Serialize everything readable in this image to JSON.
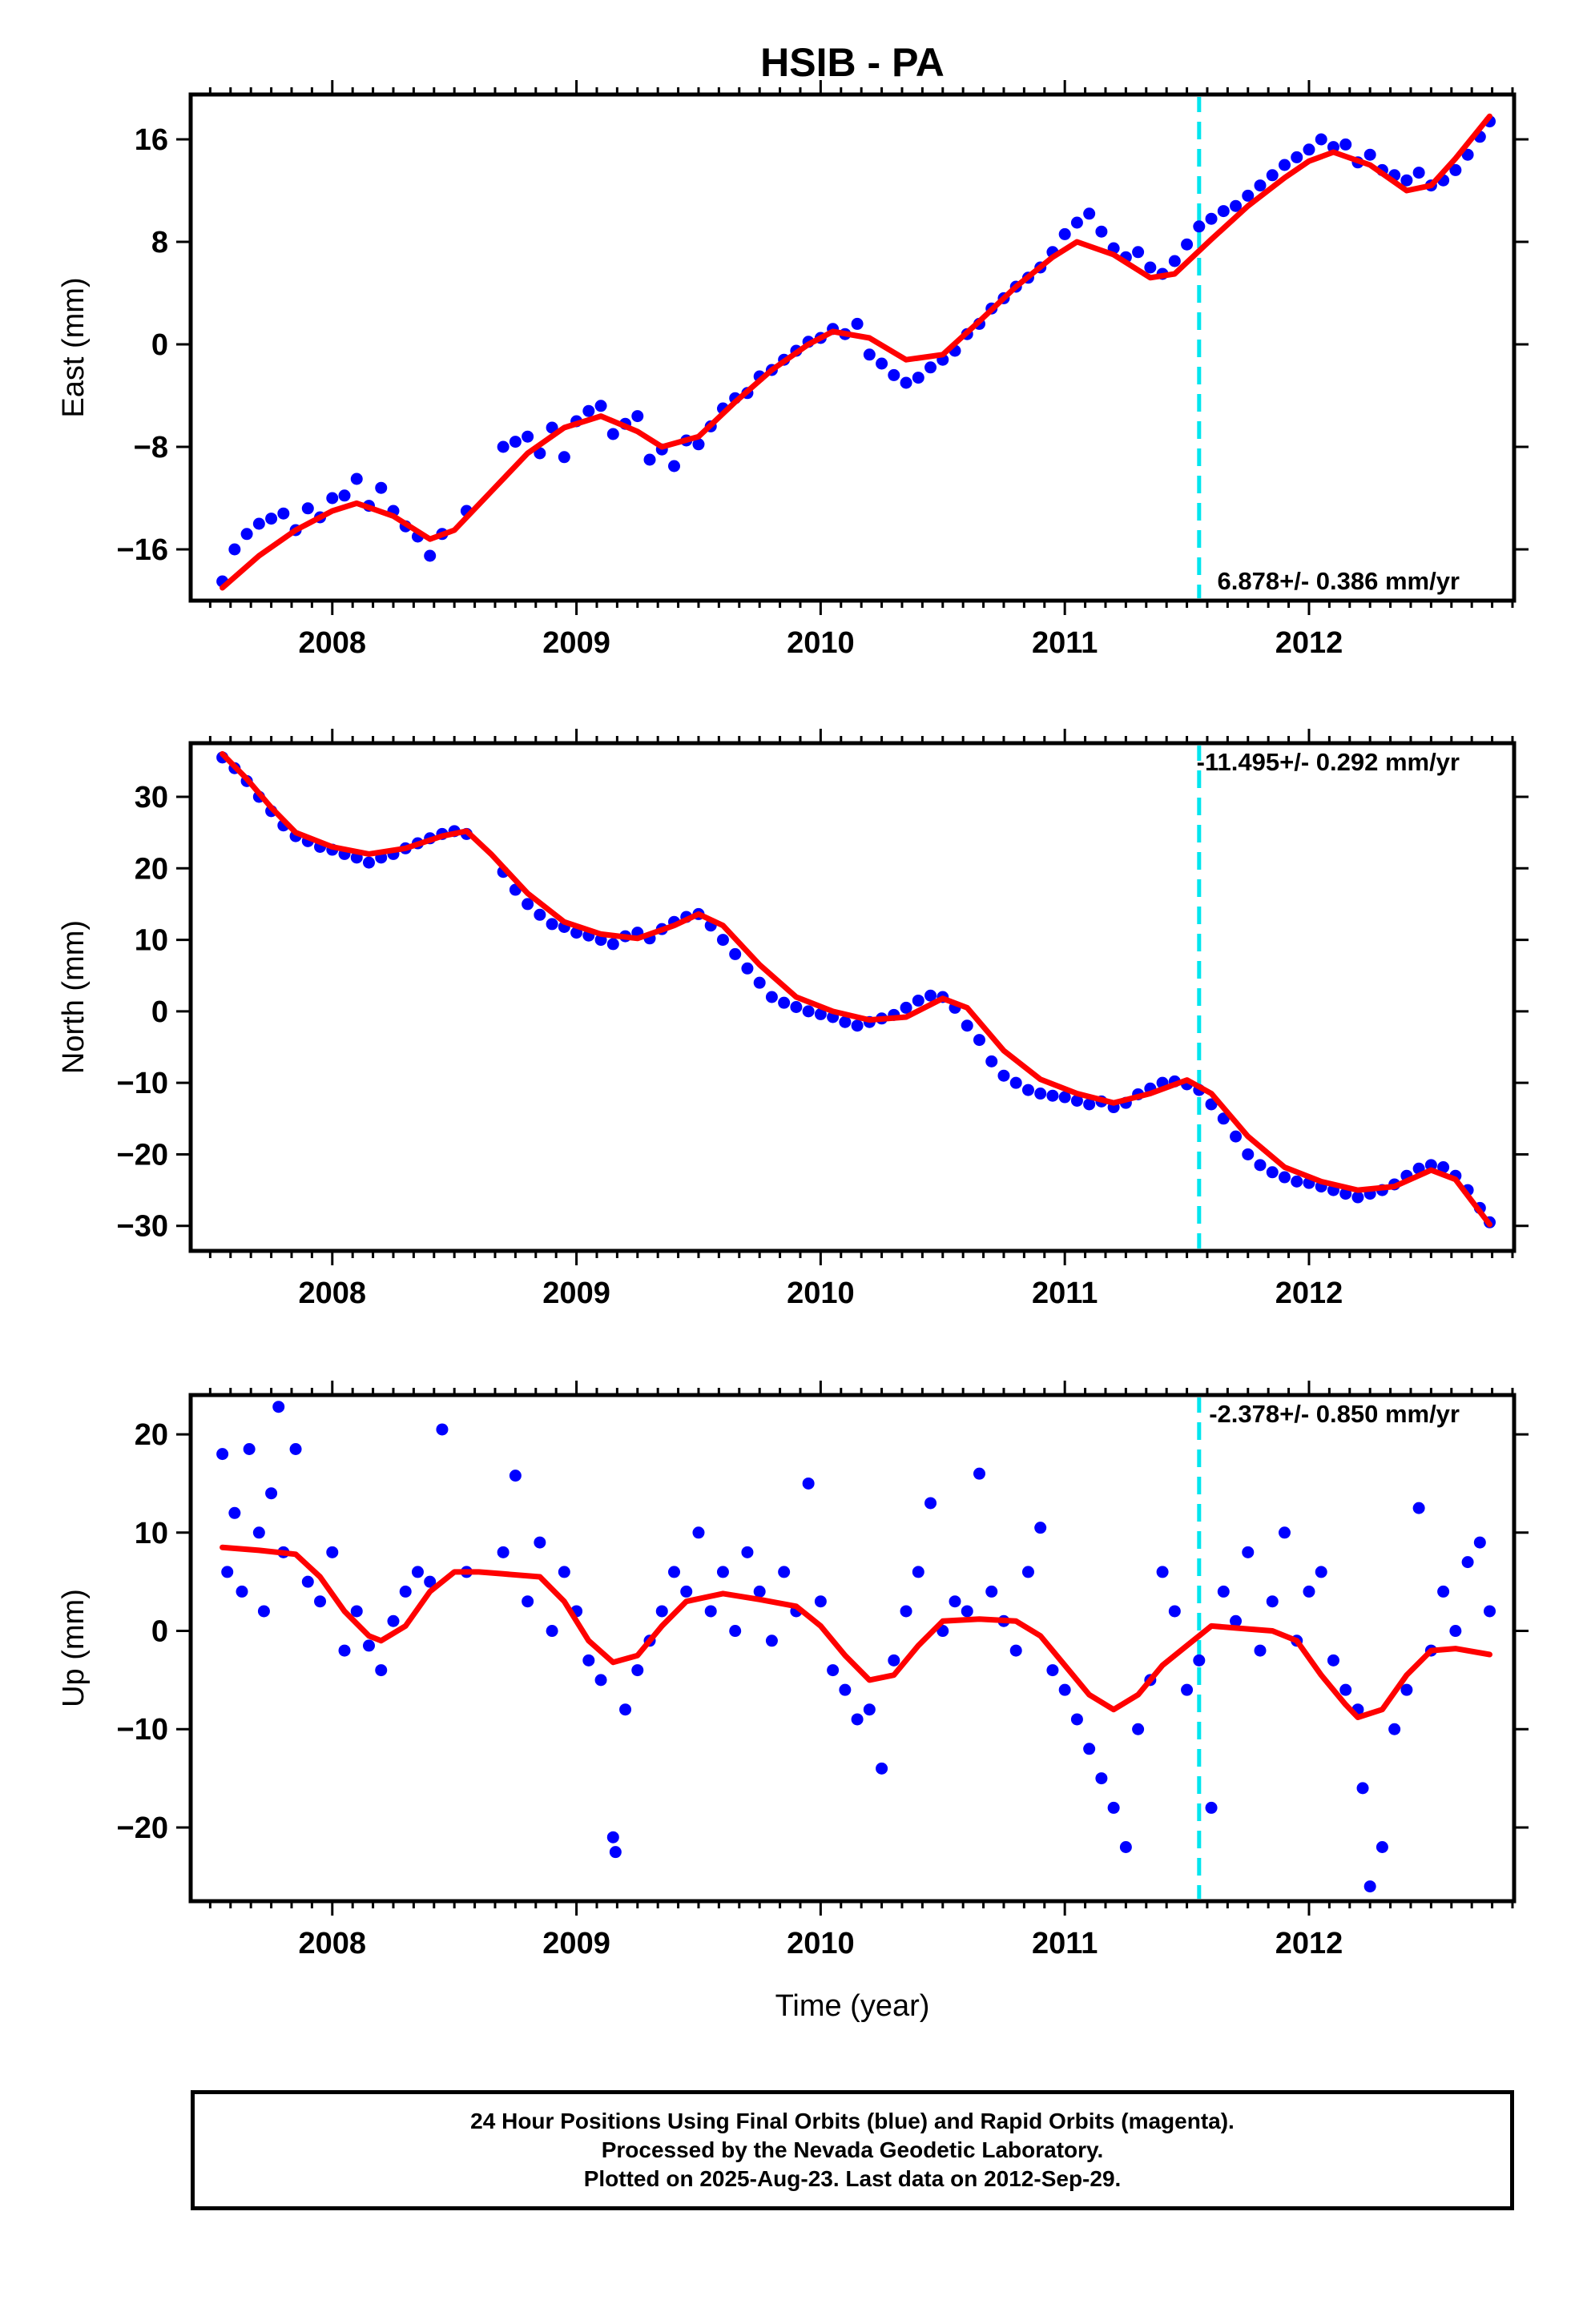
{
  "chart_data": [
    {
      "type": "scatter",
      "title": "HSIB - PA",
      "ylabel": "East (mm)",
      "xlabel": "",
      "xlim": [
        2007.42,
        2012.84
      ],
      "ylim": [
        -20.0,
        19.5
      ],
      "yticks": [
        -16,
        -8,
        0,
        8,
        16
      ],
      "xticks": [
        2008,
        2009,
        2010,
        2011,
        2012
      ],
      "annotation": "6.878+/- 0.386 mm/yr",
      "annotation_position": "bottom-right",
      "break_line_x": 2011.55,
      "series": [
        {
          "kind": "points",
          "color": "#0000ff",
          "x": [
            2007.55,
            2007.6,
            2007.65,
            2007.7,
            2007.75,
            2007.8,
            2007.85,
            2007.9,
            2007.95,
            2008.0,
            2008.05,
            2008.1,
            2008.15,
            2008.2,
            2008.25,
            2008.3,
            2008.35,
            2008.4,
            2008.45,
            2008.55,
            2008.7,
            2008.75,
            2008.8,
            2008.85,
            2008.9,
            2008.95,
            2009.0,
            2009.05,
            2009.1,
            2009.15,
            2009.2,
            2009.25,
            2009.3,
            2009.35,
            2009.4,
            2009.45,
            2009.5,
            2009.55,
            2009.6,
            2009.65,
            2009.7,
            2009.75,
            2009.8,
            2009.85,
            2009.9,
            2009.95,
            2010.0,
            2010.05,
            2010.1,
            2010.15,
            2010.2,
            2010.25,
            2010.3,
            2010.35,
            2010.4,
            2010.45,
            2010.5,
            2010.55,
            2010.6,
            2010.65,
            2010.7,
            2010.75,
            2010.8,
            2010.85,
            2010.9,
            2010.95,
            2011.0,
            2011.05,
            2011.1,
            2011.15,
            2011.2,
            2011.25,
            2011.3,
            2011.35,
            2011.4,
            2011.45,
            2011.5,
            2011.55,
            2011.6,
            2011.65,
            2011.7,
            2011.75,
            2011.8,
            2011.85,
            2011.9,
            2011.95,
            2012.0,
            2012.05,
            2012.1,
            2012.15,
            2012.2,
            2012.25,
            2012.3,
            2012.35,
            2012.4,
            2012.45,
            2012.5,
            2012.55,
            2012.6,
            2012.65,
            2012.7,
            2012.74
          ],
          "y": [
            -18.5,
            -16.0,
            -14.8,
            -14.0,
            -13.6,
            -13.2,
            -14.5,
            -12.8,
            -13.5,
            -12.0,
            -11.8,
            -10.5,
            -12.6,
            -11.2,
            -13.0,
            -14.2,
            -15.0,
            -16.5,
            -14.8,
            -13.0,
            -8.0,
            -7.6,
            -7.2,
            -8.5,
            -6.5,
            -8.8,
            -6.0,
            -5.2,
            -4.8,
            -7.0,
            -6.2,
            -5.6,
            -9.0,
            -8.2,
            -9.5,
            -7.5,
            -7.8,
            -6.4,
            -5.0,
            -4.2,
            -3.8,
            -2.5,
            -2.0,
            -1.2,
            -0.5,
            0.2,
            0.5,
            1.2,
            0.8,
            1.6,
            -0.8,
            -1.5,
            -2.4,
            -3.0,
            -2.6,
            -1.8,
            -1.2,
            -0.5,
            0.8,
            1.6,
            2.8,
            3.6,
            4.5,
            5.2,
            6.0,
            7.2,
            8.6,
            9.5,
            10.2,
            8.8,
            7.5,
            6.8,
            7.2,
            6.0,
            5.5,
            6.5,
            7.8,
            9.2,
            9.8,
            10.4,
            10.8,
            11.6,
            12.4,
            13.2,
            14.0,
            14.6,
            15.2,
            16.0,
            15.4,
            15.6,
            14.2,
            14.8,
            13.6,
            13.2,
            12.8,
            13.4,
            12.4,
            12.8,
            13.6,
            14.8,
            16.2,
            17.4
          ]
        },
        {
          "kind": "line",
          "color": "#ff0000",
          "x": [
            2007.55,
            2007.7,
            2007.85,
            2008.0,
            2008.1,
            2008.25,
            2008.4,
            2008.5,
            2008.65,
            2008.8,
            2008.95,
            2009.1,
            2009.25,
            2009.35,
            2009.5,
            2009.65,
            2009.8,
            2009.95,
            2010.05,
            2010.2,
            2010.35,
            2010.5,
            2010.65,
            2010.8,
            2010.95,
            2011.05,
            2011.2,
            2011.35,
            2011.45,
            2011.6,
            2011.75,
            2011.9,
            2012.0,
            2012.1,
            2012.25,
            2012.4,
            2012.5,
            2012.6,
            2012.74
          ],
          "y": [
            -19.0,
            -16.5,
            -14.5,
            -13.0,
            -12.4,
            -13.4,
            -15.2,
            -14.5,
            -11.5,
            -8.5,
            -6.5,
            -5.6,
            -6.8,
            -8.0,
            -7.2,
            -4.5,
            -2.0,
            0.0,
            1.0,
            0.5,
            -1.2,
            -0.8,
            1.8,
            4.5,
            6.8,
            8.0,
            7.0,
            5.2,
            5.5,
            8.2,
            10.8,
            13.0,
            14.3,
            15.0,
            14.0,
            12.0,
            12.4,
            14.5,
            17.8
          ]
        }
      ]
    },
    {
      "type": "scatter",
      "title": "",
      "ylabel": "North (mm)",
      "xlabel": "",
      "xlim": [
        2007.42,
        2012.84
      ],
      "ylim": [
        -33.5,
        37.5
      ],
      "yticks": [
        -30,
        -20,
        -10,
        0,
        10,
        20,
        30
      ],
      "xticks": [
        2008,
        2009,
        2010,
        2011,
        2012
      ],
      "annotation": "-11.495+/- 0.292 mm/yr",
      "annotation_position": "top-right",
      "break_line_x": 2011.55,
      "series": [
        {
          "kind": "points",
          "color": "#0000ff",
          "x": [
            2007.55,
            2007.6,
            2007.65,
            2007.7,
            2007.75,
            2007.8,
            2007.85,
            2007.9,
            2007.95,
            2008.0,
            2008.05,
            2008.1,
            2008.15,
            2008.2,
            2008.25,
            2008.3,
            2008.35,
            2008.4,
            2008.45,
            2008.5,
            2008.55,
            2008.7,
            2008.75,
            2008.8,
            2008.85,
            2008.9,
            2008.95,
            2009.0,
            2009.05,
            2009.1,
            2009.15,
            2009.2,
            2009.25,
            2009.3,
            2009.35,
            2009.4,
            2009.45,
            2009.5,
            2009.55,
            2009.6,
            2009.65,
            2009.7,
            2009.75,
            2009.8,
            2009.85,
            2009.9,
            2009.95,
            2010.0,
            2010.05,
            2010.1,
            2010.15,
            2010.2,
            2010.25,
            2010.3,
            2010.35,
            2010.4,
            2010.45,
            2010.5,
            2010.55,
            2010.6,
            2010.65,
            2010.7,
            2010.75,
            2010.8,
            2010.85,
            2010.9,
            2010.95,
            2011.0,
            2011.05,
            2011.1,
            2011.15,
            2011.2,
            2011.25,
            2011.3,
            2011.35,
            2011.4,
            2011.45,
            2011.5,
            2011.55,
            2011.6,
            2011.65,
            2011.7,
            2011.75,
            2011.8,
            2011.85,
            2011.9,
            2011.95,
            2012.0,
            2012.05,
            2012.1,
            2012.15,
            2012.2,
            2012.25,
            2012.3,
            2012.35,
            2012.4,
            2012.45,
            2012.5,
            2012.55,
            2012.6,
            2012.65,
            2012.7,
            2012.74
          ],
          "y": [
            35.5,
            34.0,
            32.2,
            30.0,
            28.0,
            26.0,
            24.5,
            23.8,
            23.0,
            22.6,
            22.0,
            21.5,
            20.8,
            21.5,
            22.0,
            22.8,
            23.5,
            24.2,
            24.8,
            25.2,
            24.8,
            19.5,
            17.0,
            15.0,
            13.5,
            12.2,
            11.8,
            11.0,
            10.6,
            10.0,
            9.4,
            10.5,
            11.0,
            10.2,
            11.5,
            12.5,
            13.2,
            13.6,
            12.0,
            10.0,
            8.0,
            6.0,
            4.0,
            2.0,
            1.2,
            0.6,
            0.0,
            -0.4,
            -0.8,
            -1.5,
            -2.0,
            -1.5,
            -1.0,
            -0.5,
            0.5,
            1.5,
            2.2,
            2.0,
            0.5,
            -2.0,
            -4.0,
            -7.0,
            -9.0,
            -10.0,
            -11.0,
            -11.5,
            -11.8,
            -12.0,
            -12.5,
            -13.0,
            -12.6,
            -13.4,
            -12.8,
            -11.6,
            -10.8,
            -10.0,
            -9.8,
            -10.2,
            -11.0,
            -13.0,
            -15.0,
            -17.5,
            -20.0,
            -21.5,
            -22.5,
            -23.2,
            -23.8,
            -24.0,
            -24.5,
            -25.0,
            -25.5,
            -26.0,
            -25.5,
            -25.0,
            -24.2,
            -23.0,
            -22.0,
            -21.5,
            -21.8,
            -23.0,
            -25.0,
            -27.5,
            -29.5
          ]
        },
        {
          "kind": "line",
          "color": "#ff0000",
          "x": [
            2007.55,
            2007.65,
            2007.75,
            2007.85,
            2008.0,
            2008.15,
            2008.3,
            2008.45,
            2008.55,
            2008.65,
            2008.8,
            2008.95,
            2009.1,
            2009.25,
            2009.4,
            2009.5,
            2009.6,
            2009.75,
            2009.9,
            2010.05,
            2010.2,
            2010.35,
            2010.5,
            2010.6,
            2010.75,
            2010.9,
            2011.05,
            2011.2,
            2011.35,
            2011.5,
            2011.6,
            2011.75,
            2011.9,
            2012.05,
            2012.2,
            2012.35,
            2012.5,
            2012.6,
            2012.74
          ],
          "y": [
            36.0,
            32.5,
            28.5,
            25.0,
            23.0,
            22.0,
            22.8,
            24.5,
            25.2,
            22.0,
            16.5,
            12.5,
            10.8,
            10.2,
            12.0,
            13.6,
            12.0,
            6.5,
            2.0,
            0.0,
            -1.2,
            -0.8,
            1.8,
            0.5,
            -5.5,
            -9.5,
            -11.5,
            -12.8,
            -11.5,
            -9.6,
            -11.5,
            -17.5,
            -21.8,
            -23.8,
            -25.0,
            -24.5,
            -22.2,
            -23.5,
            -29.8
          ]
        }
      ]
    },
    {
      "type": "scatter",
      "title": "",
      "ylabel": "Up (mm)",
      "xlabel": "Time (year)",
      "xlim": [
        2007.42,
        2012.84
      ],
      "ylim": [
        -27.5,
        24.0
      ],
      "yticks": [
        -20,
        -10,
        0,
        10,
        20
      ],
      "xticks": [
        2008,
        2009,
        2010,
        2011,
        2012
      ],
      "annotation": "-2.378+/- 0.850 mm/yr",
      "annotation_position": "top-right",
      "break_line_x": 2011.55,
      "series": [
        {
          "kind": "points",
          "color": "#0000ff",
          "x": [
            2007.55,
            2007.57,
            2007.6,
            2007.63,
            2007.66,
            2007.7,
            2007.72,
            2007.75,
            2007.78,
            2007.8,
            2007.85,
            2007.9,
            2007.95,
            2008.0,
            2008.05,
            2008.1,
            2008.15,
            2008.2,
            2008.25,
            2008.3,
            2008.35,
            2008.4,
            2008.45,
            2008.55,
            2008.7,
            2008.75,
            2008.8,
            2008.85,
            2008.9,
            2008.95,
            2009.0,
            2009.05,
            2009.1,
            2009.15,
            2009.16,
            2009.2,
            2009.25,
            2009.3,
            2009.35,
            2009.4,
            2009.45,
            2009.5,
            2009.55,
            2009.6,
            2009.65,
            2009.7,
            2009.75,
            2009.8,
            2009.85,
            2009.9,
            2009.95,
            2010.0,
            2010.05,
            2010.1,
            2010.15,
            2010.2,
            2010.25,
            2010.3,
            2010.35,
            2010.4,
            2010.45,
            2010.5,
            2010.55,
            2010.6,
            2010.65,
            2010.7,
            2010.75,
            2010.8,
            2010.85,
            2010.9,
            2010.95,
            2011.0,
            2011.05,
            2011.1,
            2011.15,
            2011.2,
            2011.25,
            2011.3,
            2011.35,
            2011.4,
            2011.45,
            2011.5,
            2011.55,
            2011.6,
            2011.65,
            2011.7,
            2011.75,
            2011.8,
            2011.85,
            2011.9,
            2011.95,
            2012.0,
            2012.05,
            2012.1,
            2012.15,
            2012.2,
            2012.22,
            2012.25,
            2012.3,
            2012.35,
            2012.4,
            2012.45,
            2012.5,
            2012.55,
            2012.6,
            2012.65,
            2012.7,
            2012.74
          ],
          "y": [
            18.0,
            6.0,
            12.0,
            4.0,
            18.5,
            10.0,
            2.0,
            14.0,
            22.8,
            8.0,
            18.5,
            5.0,
            3.0,
            8.0,
            -2.0,
            2.0,
            -1.5,
            -4.0,
            1.0,
            4.0,
            6.0,
            5.0,
            20.5,
            6.0,
            8.0,
            15.8,
            3.0,
            9.0,
            0.0,
            6.0,
            2.0,
            -3.0,
            -5.0,
            -21.0,
            -22.5,
            -8.0,
            -4.0,
            -1.0,
            2.0,
            6.0,
            4.0,
            10.0,
            2.0,
            6.0,
            0.0,
            8.0,
            4.0,
            -1.0,
            6.0,
            2.0,
            15.0,
            3.0,
            -4.0,
            -6.0,
            -9.0,
            -8.0,
            -14.0,
            -3.0,
            2.0,
            6.0,
            13.0,
            0.0,
            3.0,
            2.0,
            16.0,
            4.0,
            1.0,
            -2.0,
            6.0,
            10.5,
            -4.0,
            -6.0,
            -9.0,
            -12.0,
            -15.0,
            -18.0,
            -22.0,
            -10.0,
            -5.0,
            6.0,
            2.0,
            -6.0,
            -3.0,
            -18.0,
            4.0,
            1.0,
            8.0,
            -2.0,
            3.0,
            10.0,
            -1.0,
            4.0,
            6.0,
            -3.0,
            -6.0,
            -8.0,
            -16.0,
            -26.0,
            -22.0,
            -10.0,
            -6.0,
            12.5,
            -2.0,
            4.0,
            0.0,
            7.0,
            9.0,
            2.0
          ]
        },
        {
          "kind": "line",
          "color": "#ff0000",
          "x": [
            2007.55,
            2007.7,
            2007.85,
            2007.95,
            2008.05,
            2008.15,
            2008.2,
            2008.3,
            2008.4,
            2008.5,
            2008.6,
            2008.7,
            2008.85,
            2008.95,
            2009.05,
            2009.15,
            2009.25,
            2009.35,
            2009.45,
            2009.6,
            2009.75,
            2009.9,
            2010.0,
            2010.1,
            2010.2,
            2010.3,
            2010.4,
            2010.5,
            2010.65,
            2010.8,
            2010.9,
            2011.0,
            2011.1,
            2011.2,
            2011.3,
            2011.4,
            2011.5,
            2011.6,
            2011.75,
            2011.85,
            2011.95,
            2012.05,
            2012.15,
            2012.2,
            2012.3,
            2012.4,
            2012.5,
            2012.6,
            2012.74
          ],
          "y": [
            8.5,
            8.2,
            7.8,
            5.5,
            2.0,
            -0.5,
            -1.0,
            0.5,
            4.0,
            6.0,
            6.0,
            5.8,
            5.5,
            3.0,
            -1.0,
            -3.2,
            -2.5,
            0.5,
            3.0,
            3.8,
            3.2,
            2.5,
            0.5,
            -2.5,
            -5.0,
            -4.5,
            -1.5,
            1.0,
            1.2,
            1.0,
            -0.5,
            -3.5,
            -6.5,
            -8.0,
            -6.5,
            -3.5,
            -1.5,
            0.5,
            0.2,
            0.0,
            -1.0,
            -4.5,
            -7.5,
            -8.8,
            -8.0,
            -4.5,
            -2.0,
            -1.8,
            -2.4
          ]
        }
      ]
    }
  ],
  "footer": {
    "line1": "24 Hour Positions Using Final Orbits (blue) and Rapid Orbits (magenta).",
    "line2": "Processed by the Nevada Geodetic Laboratory.",
    "line3": "Plotted on 2025-Aug-23. Last data on 2012-Sep-29."
  }
}
